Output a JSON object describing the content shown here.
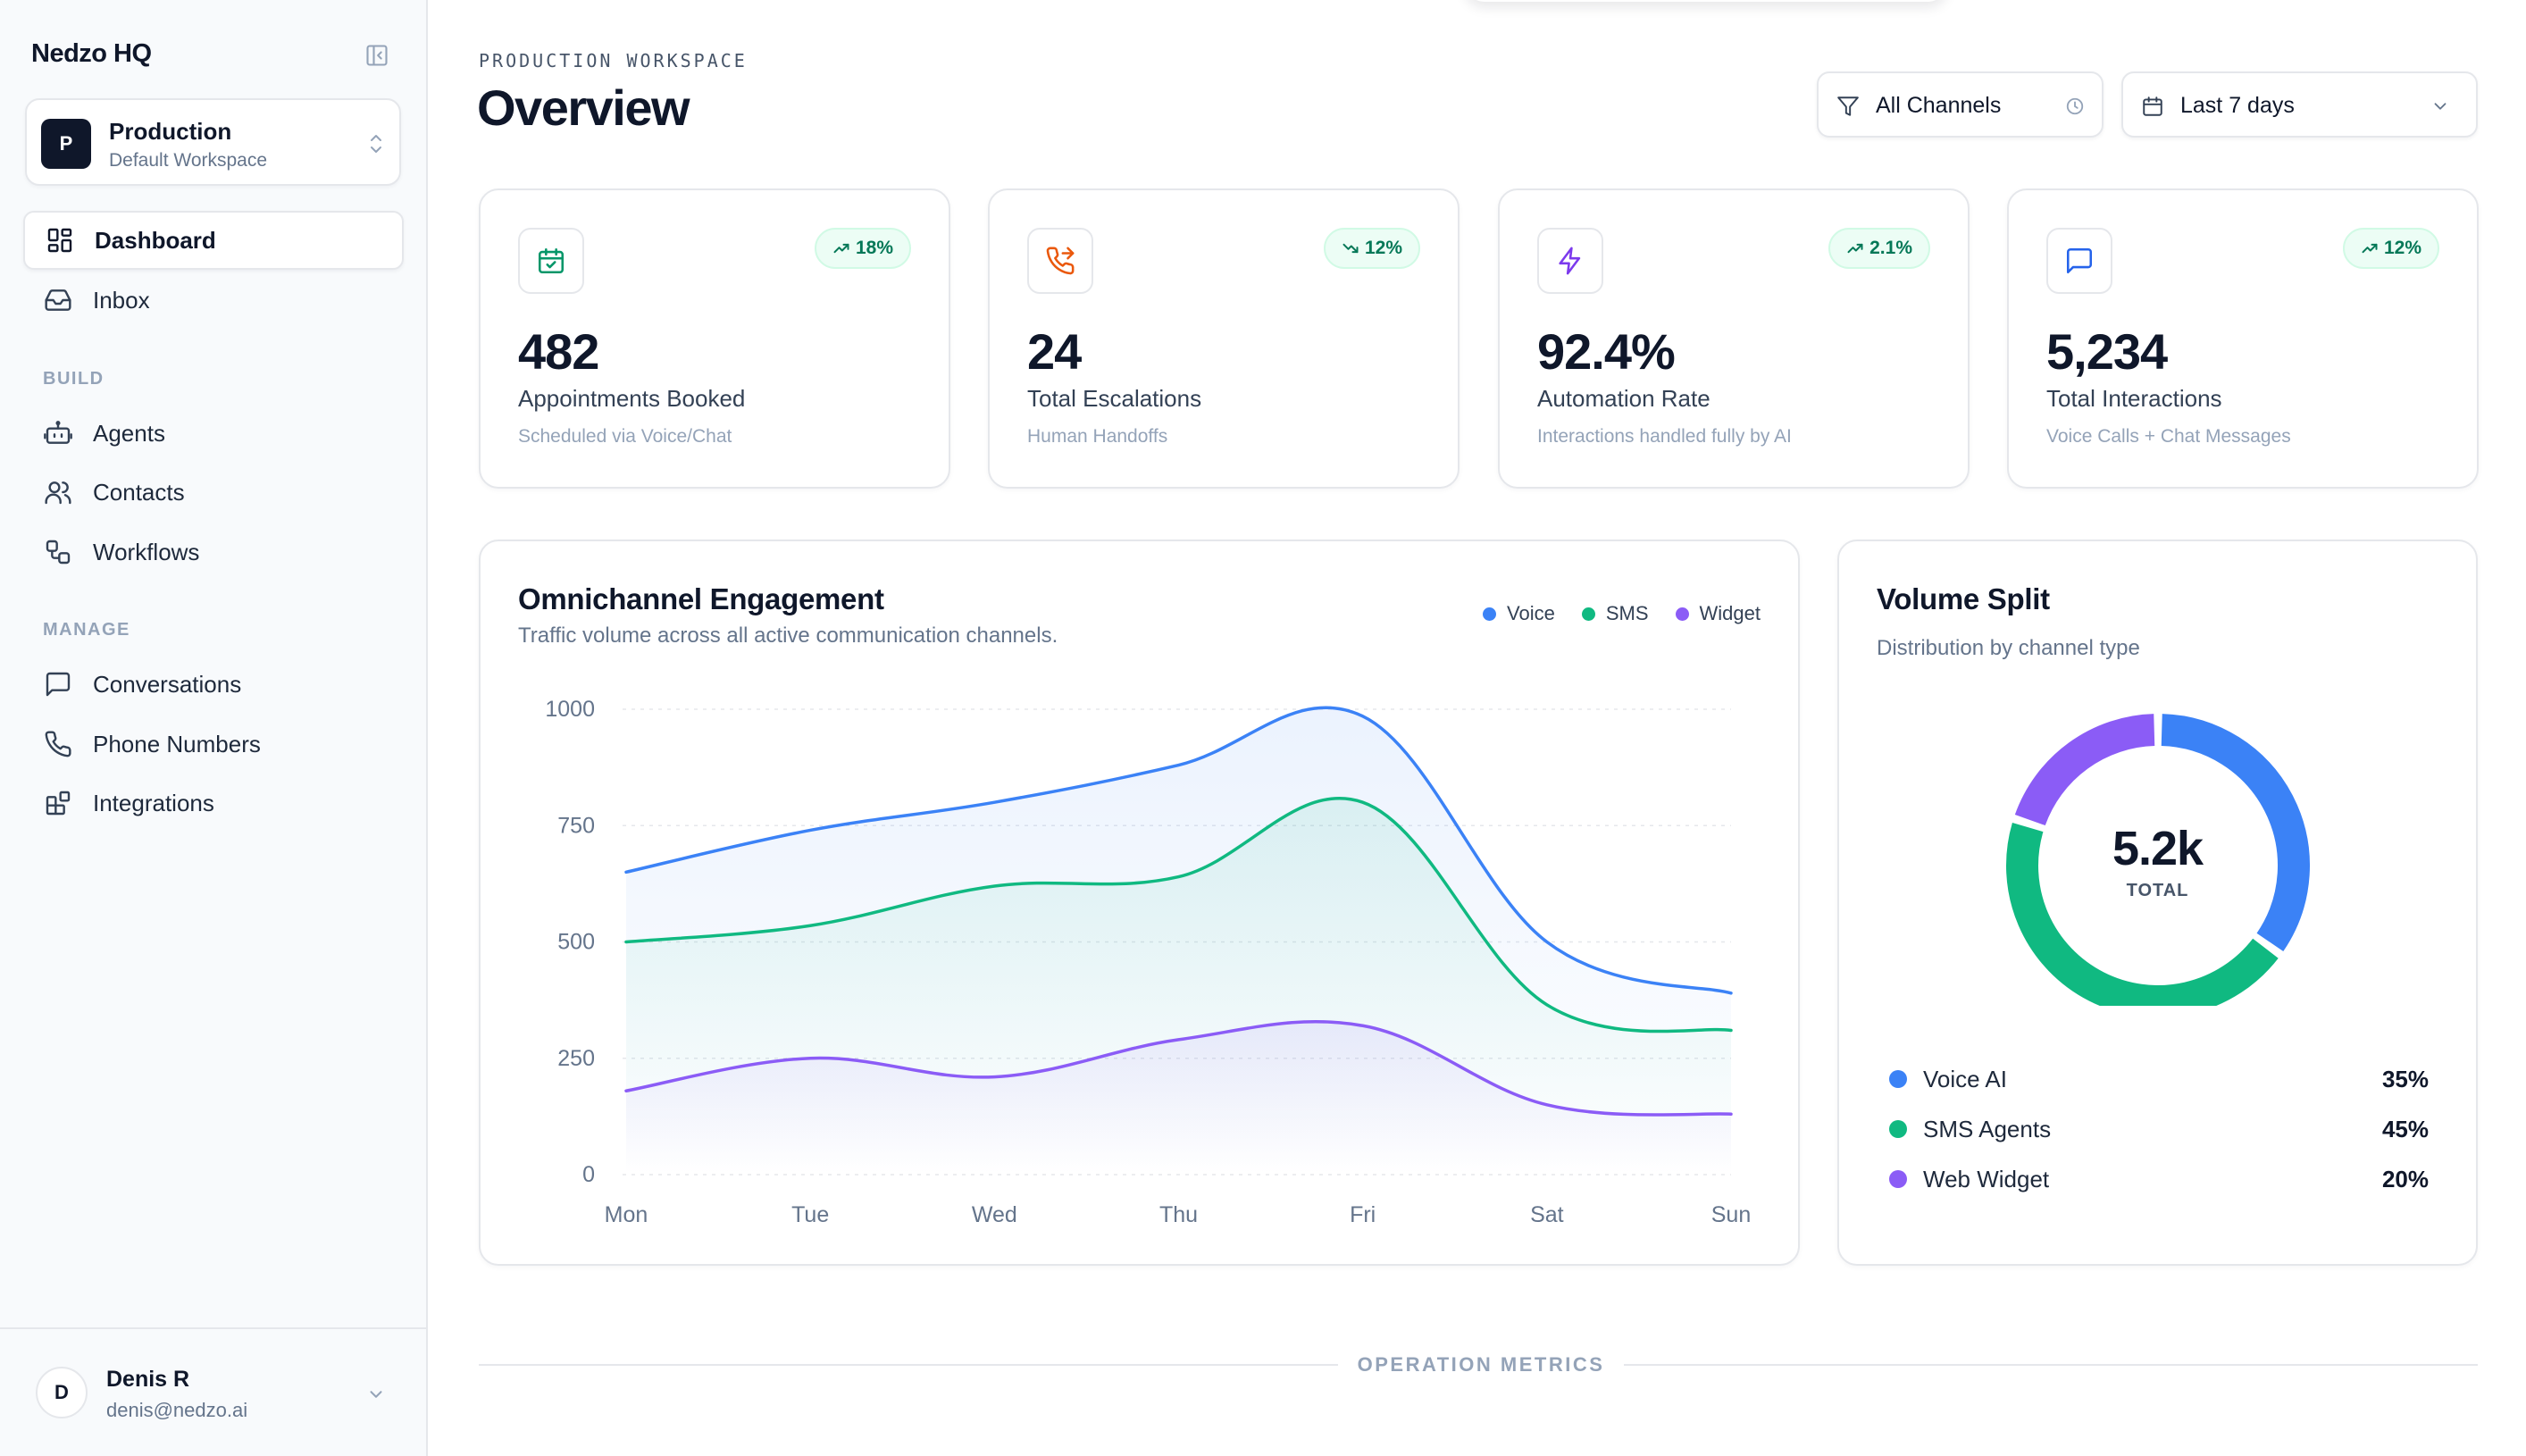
{
  "brand": "Nedzo HQ",
  "workspace": {
    "initial": "P",
    "name": "Production",
    "sub": "Default Workspace"
  },
  "nav": {
    "primary": [
      {
        "label": "Dashboard",
        "icon": "grid-icon",
        "active": true
      },
      {
        "label": "Inbox",
        "icon": "inbox-icon"
      }
    ],
    "build_label": "BUILD",
    "build": [
      {
        "label": "Agents",
        "icon": "bot-icon"
      },
      {
        "label": "Contacts",
        "icon": "users-icon"
      },
      {
        "label": "Workflows",
        "icon": "workflow-icon"
      }
    ],
    "manage_label": "MANAGE",
    "manage": [
      {
        "label": "Conversations",
        "icon": "message-icon"
      },
      {
        "label": "Phone Numbers",
        "icon": "phone-icon"
      },
      {
        "label": "Integrations",
        "icon": "blocks-icon"
      }
    ]
  },
  "user": {
    "initial": "D",
    "name": "Denis R",
    "email": "denis@nedzo.ai"
  },
  "header": {
    "eyebrow": "PRODUCTION WORKSPACE",
    "title": "Overview",
    "channel_filter": "All Channels",
    "date_filter": "Last 7 days"
  },
  "kpis": [
    {
      "value": "482",
      "label": "Appointments Booked",
      "sub": "Scheduled via Voice/Chat",
      "badge": "18%",
      "trend": "up",
      "icon": "calendar-check-icon",
      "icon_color": "#059669"
    },
    {
      "value": "24",
      "label": "Total Escalations",
      "sub": "Human Handoffs",
      "badge": "12%",
      "trend": "down",
      "icon": "phone-forward-icon",
      "icon_color": "#ea580c"
    },
    {
      "value": "92.4%",
      "label": "Automation Rate",
      "sub": "Interactions handled fully by AI",
      "badge": "2.1%",
      "trend": "up",
      "icon": "zap-icon",
      "icon_color": "#7c3aed"
    },
    {
      "value": "5,234",
      "label": "Total Interactions",
      "sub": "Voice Calls + Chat Messages",
      "badge": "12%",
      "trend": "up",
      "icon": "message-square-icon",
      "icon_color": "#2563eb"
    }
  ],
  "engagement": {
    "title": "Omnichannel Engagement",
    "subtitle": "Traffic volume across all active communication channels."
  },
  "split": {
    "title": "Volume Split",
    "subtitle": "Distribution by channel type",
    "total": "5.2k",
    "total_label": "TOTAL",
    "rows": [
      {
        "label": "Voice AI",
        "pct": "35%",
        "color": "#3b82f6"
      },
      {
        "label": "SMS Agents",
        "pct": "45%",
        "color": "#10b981"
      },
      {
        "label": "Web Widget",
        "pct": "20%",
        "color": "#8b5cf6"
      }
    ]
  },
  "section_label": "OPERATION METRICS",
  "chart_data": [
    {
      "type": "area",
      "categories": [
        "Mon",
        "Tue",
        "Wed",
        "Thu",
        "Fri",
        "Sat",
        "Sun"
      ],
      "ylim": [
        0,
        1000
      ],
      "yticks": [
        0,
        250,
        500,
        750,
        1000
      ],
      "grid": true,
      "legend": "top-right",
      "series": [
        {
          "name": "Voice",
          "color": "#3b82f6",
          "values": [
            650,
            740,
            800,
            880,
            985,
            500,
            390
          ]
        },
        {
          "name": "SMS",
          "color": "#10b981",
          "values": [
            500,
            535,
            620,
            640,
            800,
            365,
            310
          ]
        },
        {
          "name": "Widget",
          "color": "#8b5cf6",
          "values": [
            180,
            250,
            210,
            290,
            320,
            150,
            130
          ]
        }
      ]
    },
    {
      "type": "pie",
      "categories": [
        "Voice AI",
        "SMS Agents",
        "Web Widget"
      ],
      "values": [
        35,
        45,
        20
      ],
      "colors": [
        "#3b82f6",
        "#10b981",
        "#8b5cf6"
      ]
    }
  ]
}
